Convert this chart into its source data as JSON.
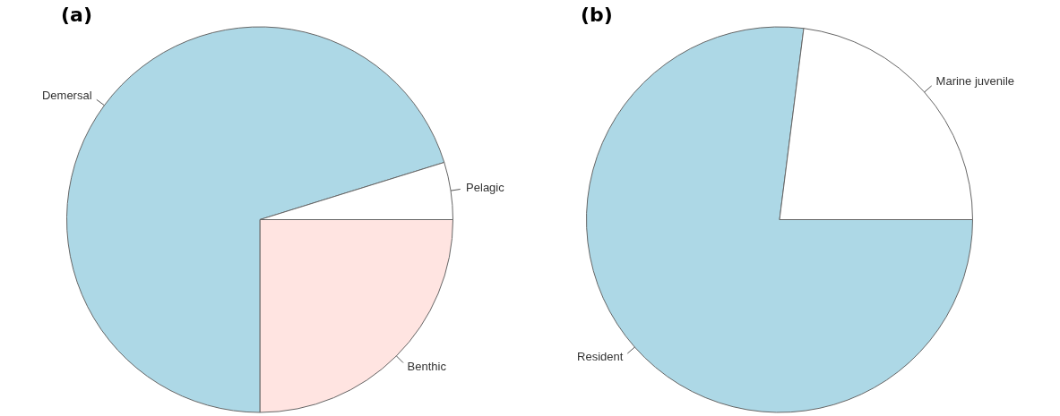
{
  "chart_data": [
    {
      "type": "pie",
      "title": "(a)",
      "categories": [
        "Benthic",
        "Demersal",
        "Pelagic"
      ],
      "values": [
        25,
        70.2,
        4.8
      ],
      "colors": [
        "#ffe4e1",
        "#add8e6",
        "#ffffff"
      ],
      "legend": false
    },
    {
      "type": "pie",
      "title": "(b)",
      "categories": [
        "Resident",
        "Marine juvenile"
      ],
      "values": [
        77,
        23
      ],
      "colors": [
        "#add8e6",
        "#ffffff"
      ],
      "legend": false
    }
  ]
}
